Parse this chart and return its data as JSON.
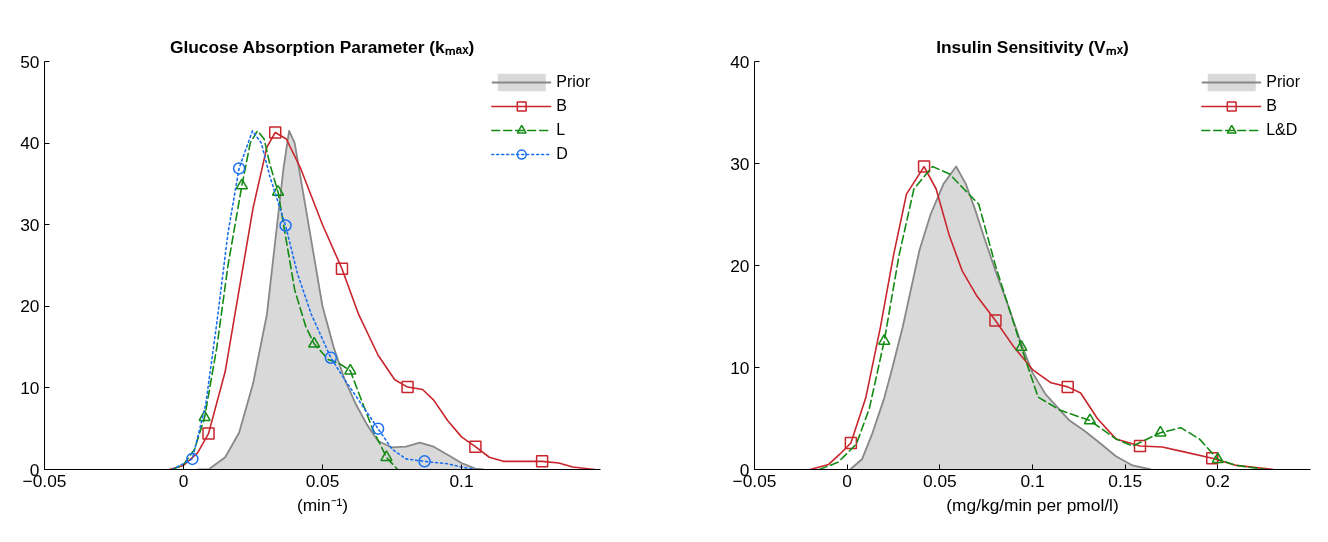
{
  "chart_data": [
    {
      "type": "line",
      "title": "Glucose Absorption Parameter (kₘₐₓ)",
      "xlabel": "(min⁻¹)",
      "xlim": [
        -0.05,
        0.15
      ],
      "xticks": [
        -0.05,
        0,
        0.05,
        0.1
      ],
      "ylim": [
        0,
        50
      ],
      "yticks": [
        0,
        10,
        20,
        30,
        40,
        50
      ],
      "grid": false,
      "legend": "top right",
      "series": [
        {
          "name": "Prior",
          "type": "area",
          "color": "#d9d9d9",
          "x": [
            0.005,
            0.009,
            0.015,
            0.02,
            0.025,
            0.03,
            0.033,
            0.036,
            0.038,
            0.04,
            0.043,
            0.047,
            0.05,
            0.054,
            0.058,
            0.062,
            0.066,
            0.07,
            0.075,
            0.08,
            0.085,
            0.09,
            0.095,
            0.1,
            0.105,
            0.108
          ],
          "values": [
            0,
            0,
            1.5,
            4.5,
            10.5,
            19,
            28,
            37,
            41.5,
            40,
            34,
            26,
            20,
            15,
            11,
            8,
            5.5,
            3.5,
            2.7,
            2.8,
            3.3,
            2.8,
            1.8,
            0.8,
            0.1,
            0
          ]
        },
        {
          "name": "B",
          "color": "#c8252c",
          "line_style": "solid",
          "x": [
            -0.005,
            0,
            0.005,
            0.009,
            0.015,
            0.02,
            0.025,
            0.03,
            0.033,
            0.037,
            0.042,
            0.05,
            0.057,
            0.063,
            0.07,
            0.076,
            0.0806,
            0.086,
            0.09,
            0.095,
            0.1,
            0.105,
            0.11,
            0.115,
            0.12,
            0.129,
            0.135,
            0.14,
            0.148
          ],
          "values": [
            0,
            0.5,
            2,
            4.4,
            12,
            22,
            32,
            39.5,
            41.3,
            40.5,
            37,
            30,
            24.6,
            19,
            14,
            11,
            10.1,
            9.8,
            8.5,
            6,
            4,
            2.8,
            1.5,
            1.0,
            1.0,
            1.0,
            0.8,
            0.3,
            0
          ]
        },
        {
          "type": "scatter",
          "color": "#c8252c",
          "marker": "square",
          "x": [
            0.009,
            0.033,
            0.057,
            0.0806,
            0.105,
            0.129
          ],
          "values": [
            4.4,
            41.3,
            24.6,
            10.1,
            2.8,
            1.0
          ]
        },
        {
          "name": "L",
          "color": "#138a13",
          "line_style": "dashed",
          "x": [
            -0.004,
            0,
            0.004,
            0.0076,
            0.012,
            0.016,
            0.021,
            0.024,
            0.0266,
            0.029,
            0.031,
            0.034,
            0.037,
            0.04,
            0.044,
            0.047,
            0.052,
            0.056,
            0.06,
            0.064,
            0.068,
            0.073,
            0.077
          ],
          "values": [
            0,
            0.6,
            2.5,
            6.4,
            15,
            25,
            34.8,
            40,
            41.5,
            40.5,
            37.5,
            34,
            28,
            22,
            17.5,
            15.4,
            13.5,
            13,
            12.1,
            8.5,
            5,
            1.5,
            0
          ]
        },
        {
          "type": "scatter",
          "color": "#138a13",
          "marker": "triangle",
          "x": [
            0.0076,
            0.021,
            0.034,
            0.047,
            0.06,
            0.073
          ],
          "values": [
            6.4,
            34.8,
            34,
            15.4,
            12.1,
            1.5
          ]
        },
        {
          "name": "D",
          "color": "#1a6ff0",
          "line_style": "dotted",
          "x": [
            -0.004,
            0.0032,
            0.008,
            0.012,
            0.016,
            0.02,
            0.0248,
            0.028,
            0.031,
            0.0367,
            0.041,
            0.046,
            0.053,
            0.058,
            0.063,
            0.07,
            0.075,
            0.08,
            0.0867,
            0.095,
            0.1,
            0.105
          ],
          "values": [
            0,
            1.3,
            8,
            18,
            29,
            36.9,
            41.5,
            40,
            36,
            29.9,
            24,
            19,
            13.7,
            11,
            8.5,
            5.0,
            2.5,
            1.3,
            1.0,
            0.7,
            0.3,
            0
          ]
        },
        {
          "type": "scatter",
          "color": "#1a6ff0",
          "marker": "circle",
          "x": [
            0.0032,
            0.02,
            0.0367,
            0.053,
            0.07,
            0.0867
          ],
          "values": [
            1.3,
            36.9,
            29.9,
            13.7,
            5.0,
            1.0
          ]
        }
      ]
    },
    {
      "type": "line",
      "title": "Insulin Sensitivity (Vₘₓ)",
      "xlabel": "(mg/kg/min per pmol/l)",
      "xlim": [
        -0.05,
        0.25
      ],
      "xticks": [
        -0.05,
        0,
        0.05,
        0.1,
        0.15,
        0.2
      ],
      "ylim": [
        0,
        40
      ],
      "yticks": [
        0,
        10,
        20,
        30,
        40
      ],
      "grid": false,
      "legend": "top right",
      "series": [
        {
          "name": "Prior",
          "type": "area",
          "color": "#d9d9d9",
          "x": [
            0.0016,
            0.008,
            0.0135,
            0.02,
            0.024,
            0.03,
            0.039,
            0.045,
            0.052,
            0.0588,
            0.064,
            0.069,
            0.074,
            0.08,
            0.087,
            0.094,
            0.1,
            0.107,
            0.12,
            0.128,
            0.137,
            0.145,
            0.154,
            0.164
          ],
          "values": [
            0,
            1,
            3.5,
            7,
            9.7,
            14,
            21.5,
            25,
            28,
            29.7,
            28,
            25.5,
            22.7,
            19.5,
            16,
            12.3,
            9.5,
            7.4,
            4.8,
            3.8,
            2.5,
            1.3,
            0.4,
            0
          ]
        },
        {
          "name": "B",
          "color": "#c8252c",
          "line_style": "solid",
          "x": [
            -0.02,
            -0.01,
            -0.004,
            0.002,
            0.01,
            0.018,
            0.025,
            0.032,
            0.0415,
            0.048,
            0.055,
            0.062,
            0.07,
            0.08,
            0.09,
            0.1,
            0.11,
            0.119,
            0.126,
            0.135,
            0.145,
            0.158,
            0.17,
            0.18,
            0.197,
            0.21,
            0.23
          ],
          "values": [
            0,
            0.5,
            1.5,
            2.6,
            7,
            14,
            21,
            27,
            29.7,
            27.5,
            23,
            19.5,
            17,
            14.6,
            12,
            9.8,
            8.5,
            8.1,
            7.5,
            5,
            3,
            2.3,
            2.2,
            1.8,
            1.1,
            0.4,
            0
          ]
        },
        {
          "type": "scatter",
          "color": "#c8252c",
          "marker": "square",
          "x": [
            0.002,
            0.0415,
            0.08,
            0.119,
            0.158,
            0.197
          ],
          "values": [
            2.6,
            29.7,
            14.6,
            8.1,
            2.3,
            1.1
          ]
        },
        {
          "name": "L&D",
          "color": "#138a13",
          "line_style": "dashed",
          "x": [
            -0.015,
            -0.005,
            0.005,
            0.012,
            0.02,
            0.028,
            0.036,
            0.046,
            0.055,
            0.063,
            0.071,
            0.08,
            0.087,
            0.094,
            0.103,
            0.115,
            0.131,
            0.145,
            0.154,
            0.169,
            0.18,
            0.19,
            0.2,
            0.21,
            0.226
          ],
          "values": [
            0,
            0.7,
            2.5,
            6,
            12.6,
            21,
            27.5,
            29.7,
            29,
            27.5,
            26,
            20,
            16,
            12.0,
            7.1,
            5.8,
            4.8,
            3,
            2.3,
            3.6,
            4.1,
            3,
            1.0,
            0.4,
            0
          ]
        },
        {
          "type": "scatter",
          "color": "#138a13",
          "marker": "triangle",
          "x": [
            0.02,
            0.094,
            0.131,
            0.169,
            0.2
          ],
          "values": [
            12.6,
            12.0,
            4.8,
            3.6,
            1.0
          ]
        }
      ]
    }
  ]
}
